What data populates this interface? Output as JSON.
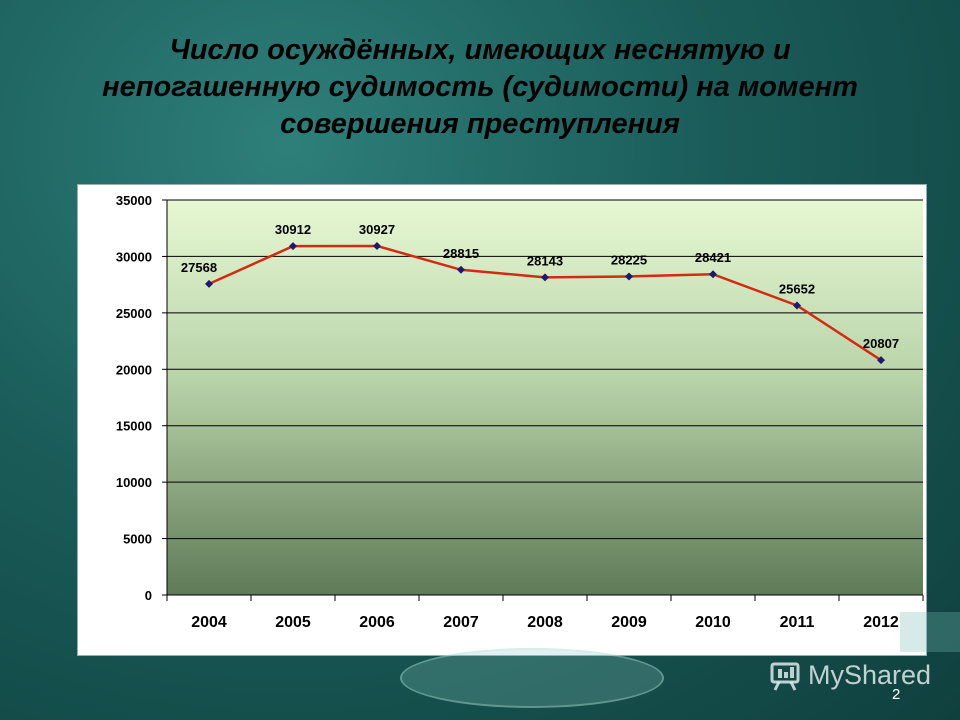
{
  "slide": {
    "title_lines": [
      "Число  осуждённых, имеющих неснятую и",
      "непогашенную судимость (судимости) на момент",
      "совершения преступления"
    ],
    "watermark": "MyShared",
    "page_number": "2"
  },
  "colors": {
    "line": "#d42a12",
    "marker": "#1c1a6e",
    "plot_top": "#e6f8d2",
    "plot_bottom": "#5e7a57"
  },
  "chart_data": {
    "type": "line",
    "categories": [
      "2004",
      "2005",
      "2006",
      "2007",
      "2008",
      "2009",
      "2010",
      "2011",
      "2012"
    ],
    "series": [
      {
        "values": [
          27568,
          30912,
          30927,
          28815,
          28143,
          28225,
          28421,
          25652,
          20807
        ]
      }
    ],
    "yticks": [
      0,
      5000,
      10000,
      15000,
      20000,
      25000,
      30000,
      35000
    ],
    "ylim": [
      0,
      35000
    ],
    "grid": true,
    "data_labels": true,
    "legend": "none"
  }
}
